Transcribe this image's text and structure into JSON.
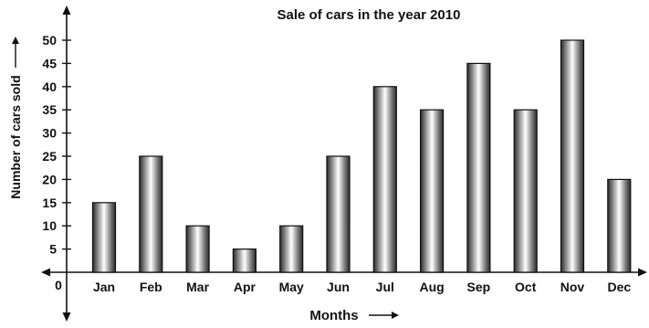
{
  "chart_data": {
    "type": "bar",
    "title": "Sale of cars in the year 2010",
    "xlabel": "Months",
    "ylabel": "Number of cars sold",
    "origin_label": "0",
    "categories": [
      "Jan",
      "Feb",
      "Mar",
      "Apr",
      "May",
      "Jun",
      "Jul",
      "Aug",
      "Sep",
      "Oct",
      "Nov",
      "Dec"
    ],
    "values": [
      15,
      25,
      10,
      5,
      10,
      25,
      40,
      35,
      45,
      35,
      50,
      20
    ],
    "ylim": [
      0,
      50
    ],
    "yticks": [
      5,
      10,
      15,
      20,
      25,
      30,
      35,
      40,
      45,
      50
    ],
    "grid": false,
    "legend": "none",
    "bar_colors": {
      "dark": "#2a2a2a",
      "light": "#ffffff"
    }
  }
}
